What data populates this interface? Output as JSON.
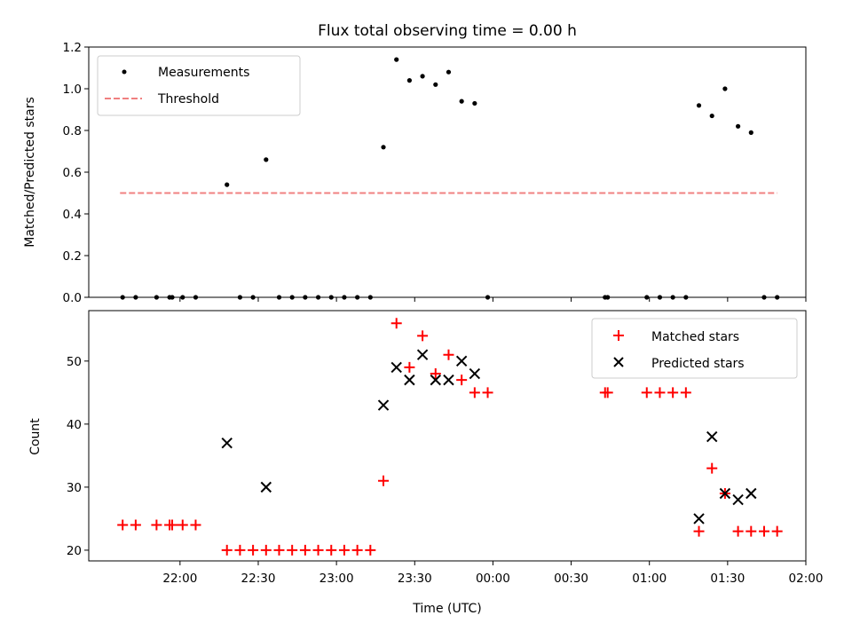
{
  "chart_data": [
    {
      "type": "scatter",
      "title": "Flux total observing time = 0.00 h",
      "xlabel": "",
      "ylabel": "Matched/Predicted stars",
      "xlim": [
        "21:25",
        "02:00"
      ],
      "ylim": [
        0,
        1.2
      ],
      "yticks": [
        "0.0",
        "0.2",
        "0.4",
        "0.6",
        "0.8",
        "1.0",
        "1.2"
      ],
      "grid": false,
      "legend_position": "upper-left",
      "series": [
        {
          "name": "Measurements",
          "marker": "dot",
          "color": "#000000",
          "points": [
            {
              "x": "21:38",
              "y": 0.0
            },
            {
              "x": "21:43",
              "y": 0.0
            },
            {
              "x": "21:51",
              "y": 0.0
            },
            {
              "x": "21:56",
              "y": 0.0
            },
            {
              "x": "21:57",
              "y": 0.0
            },
            {
              "x": "22:01",
              "y": 0.0
            },
            {
              "x": "22:06",
              "y": 0.0
            },
            {
              "x": "22:18",
              "y": 0.54
            },
            {
              "x": "22:23",
              "y": 0.0
            },
            {
              "x": "22:28",
              "y": 0.0
            },
            {
              "x": "22:33",
              "y": 0.66
            },
            {
              "x": "22:38",
              "y": 0.0
            },
            {
              "x": "22:43",
              "y": 0.0
            },
            {
              "x": "22:48",
              "y": 0.0
            },
            {
              "x": "22:53",
              "y": 0.0
            },
            {
              "x": "22:58",
              "y": 0.0
            },
            {
              "x": "23:03",
              "y": 0.0
            },
            {
              "x": "23:08",
              "y": 0.0
            },
            {
              "x": "23:13",
              "y": 0.0
            },
            {
              "x": "23:18",
              "y": 0.72
            },
            {
              "x": "23:23",
              "y": 1.14
            },
            {
              "x": "23:28",
              "y": 1.04
            },
            {
              "x": "23:33",
              "y": 1.06
            },
            {
              "x": "23:38",
              "y": 1.02
            },
            {
              "x": "23:43",
              "y": 1.08
            },
            {
              "x": "23:48",
              "y": 0.94
            },
            {
              "x": "23:53",
              "y": 0.93
            },
            {
              "x": "23:58",
              "y": 0.0
            },
            {
              "x": "00:43",
              "y": 0.0
            },
            {
              "x": "00:44",
              "y": 0.0
            },
            {
              "x": "00:59",
              "y": 0.0
            },
            {
              "x": "01:04",
              "y": 0.0
            },
            {
              "x": "01:09",
              "y": 0.0
            },
            {
              "x": "01:14",
              "y": 0.0
            },
            {
              "x": "01:19",
              "y": 0.92
            },
            {
              "x": "01:24",
              "y": 0.87
            },
            {
              "x": "01:29",
              "y": 1.0
            },
            {
              "x": "01:34",
              "y": 0.82
            },
            {
              "x": "01:39",
              "y": 0.79
            },
            {
              "x": "01:44",
              "y": 0.0
            },
            {
              "x": "01:49",
              "y": 0.0
            }
          ]
        },
        {
          "name": "Threshold",
          "marker": "dashed-line",
          "color": "#f08080",
          "points": [
            {
              "x": "21:37",
              "y": 0.5
            },
            {
              "x": "01:49",
              "y": 0.5
            }
          ]
        }
      ]
    },
    {
      "type": "scatter",
      "title": "",
      "xlabel": "Time (UTC)",
      "ylabel": "Count",
      "xlim": [
        "21:25",
        "02:00"
      ],
      "ylim": [
        18.3,
        58
      ],
      "yticks": [
        "20",
        "30",
        "40",
        "50"
      ],
      "xticks": [
        "22:00",
        "22:30",
        "23:00",
        "23:30",
        "00:00",
        "00:30",
        "01:00",
        "01:30",
        "02:00"
      ],
      "grid": false,
      "legend_position": "upper-right",
      "series": [
        {
          "name": "Matched stars",
          "marker": "plus",
          "color": "#ff0000",
          "points": [
            {
              "x": "21:38",
              "y": 24
            },
            {
              "x": "21:43",
              "y": 24
            },
            {
              "x": "21:51",
              "y": 24
            },
            {
              "x": "21:56",
              "y": 24
            },
            {
              "x": "21:57",
              "y": 24
            },
            {
              "x": "22:01",
              "y": 24
            },
            {
              "x": "22:06",
              "y": 24
            },
            {
              "x": "22:18",
              "y": 20
            },
            {
              "x": "22:23",
              "y": 20
            },
            {
              "x": "22:28",
              "y": 20
            },
            {
              "x": "22:33",
              "y": 20
            },
            {
              "x": "22:38",
              "y": 20
            },
            {
              "x": "22:43",
              "y": 20
            },
            {
              "x": "22:48",
              "y": 20
            },
            {
              "x": "22:53",
              "y": 20
            },
            {
              "x": "22:58",
              "y": 20
            },
            {
              "x": "23:03",
              "y": 20
            },
            {
              "x": "23:08",
              "y": 20
            },
            {
              "x": "23:13",
              "y": 20
            },
            {
              "x": "23:18",
              "y": 31
            },
            {
              "x": "23:23",
              "y": 56
            },
            {
              "x": "23:28",
              "y": 49
            },
            {
              "x": "23:33",
              "y": 54
            },
            {
              "x": "23:38",
              "y": 48
            },
            {
              "x": "23:43",
              "y": 51
            },
            {
              "x": "23:48",
              "y": 47
            },
            {
              "x": "23:53",
              "y": 45
            },
            {
              "x": "23:58",
              "y": 45
            },
            {
              "x": "00:43",
              "y": 45
            },
            {
              "x": "00:44",
              "y": 45
            },
            {
              "x": "00:59",
              "y": 45
            },
            {
              "x": "01:04",
              "y": 45
            },
            {
              "x": "01:09",
              "y": 45
            },
            {
              "x": "01:14",
              "y": 45
            },
            {
              "x": "01:19",
              "y": 23
            },
            {
              "x": "01:24",
              "y": 33
            },
            {
              "x": "01:29",
              "y": 29
            },
            {
              "x": "01:34",
              "y": 23
            },
            {
              "x": "01:39",
              "y": 23
            },
            {
              "x": "01:44",
              "y": 23
            },
            {
              "x": "01:49",
              "y": 23
            }
          ]
        },
        {
          "name": "Predicted stars",
          "marker": "x",
          "color": "#000000",
          "points": [
            {
              "x": "22:18",
              "y": 37
            },
            {
              "x": "22:33",
              "y": 30
            },
            {
              "x": "23:18",
              "y": 43
            },
            {
              "x": "23:23",
              "y": 49
            },
            {
              "x": "23:28",
              "y": 47
            },
            {
              "x": "23:33",
              "y": 51
            },
            {
              "x": "23:38",
              "y": 47
            },
            {
              "x": "23:43",
              "y": 47
            },
            {
              "x": "23:48",
              "y": 50
            },
            {
              "x": "23:53",
              "y": 48
            },
            {
              "x": "01:19",
              "y": 25
            },
            {
              "x": "01:24",
              "y": 38
            },
            {
              "x": "01:29",
              "y": 29
            },
            {
              "x": "01:34",
              "y": 28
            },
            {
              "x": "01:39",
              "y": 29
            }
          ]
        }
      ]
    }
  ]
}
